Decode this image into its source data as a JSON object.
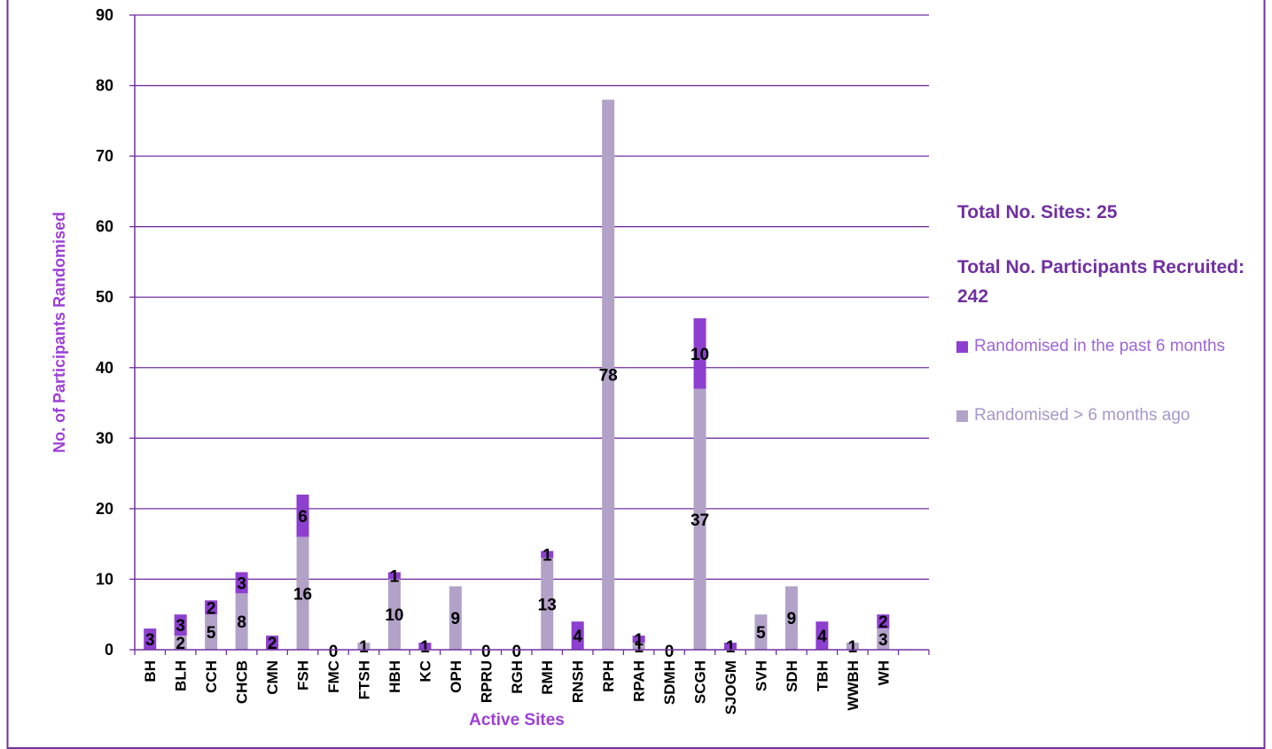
{
  "chart_data": {
    "type": "bar",
    "stacked": true,
    "xlabel": "Active Sites",
    "ylabel": "No. of Participants Randomised",
    "ylim": [
      0,
      90
    ],
    "yticks": [
      0,
      10,
      20,
      30,
      40,
      50,
      60,
      70,
      80,
      90
    ],
    "grid": true,
    "legend_position": "right",
    "categories": [
      "BH",
      "BLH",
      "CCH",
      "CHCB",
      "CMN",
      "FSH",
      "FMC",
      "FTSH",
      "HBH",
      "KC",
      "OPH",
      "RPRU",
      "RGH",
      "RMH",
      "RNSH",
      "RPH",
      "RPAH",
      "SDMH",
      "SCGH",
      "SJOGM",
      "SVH",
      "SDH",
      "TBH",
      "WWBH",
      "WH"
    ],
    "series": [
      {
        "name": "Randomised > 6 months ago",
        "color": "#b3a2c7",
        "values": [
          0,
          2,
          5,
          8,
          0,
          16,
          0,
          1,
          10,
          0,
          9,
          0,
          0,
          13,
          0,
          78,
          1,
          0,
          37,
          0,
          5,
          9,
          0,
          1,
          3
        ],
        "labels": [
          "",
          "2",
          "5",
          "8",
          "",
          "16",
          "0",
          "1",
          "10",
          "",
          "9",
          "",
          "0",
          "13",
          "",
          "78",
          "1",
          "0",
          "37",
          "",
          "5",
          "9",
          "",
          "1",
          "3"
        ]
      },
      {
        "name": "Randomised in the past 6 months",
        "color": "#8d3fcf",
        "values": [
          3,
          3,
          2,
          3,
          2,
          6,
          0,
          0,
          1,
          1,
          0,
          0,
          0,
          1,
          4,
          0,
          1,
          0,
          10,
          1,
          0,
          0,
          4,
          0,
          2
        ],
        "labels": [
          "3",
          "3",
          "2",
          "3",
          "2",
          "6",
          "",
          "",
          "1",
          "1",
          "",
          "0",
          "",
          "1",
          "4",
          "",
          "1",
          "",
          "10",
          "1",
          "",
          "",
          "4",
          "",
          "2"
        ]
      }
    ]
  },
  "side": {
    "total_sites": "Total No. Sites: 25",
    "total_participants": "Total No. Participants Recruited: 242"
  },
  "legend": {
    "recent": "Randomised in the past 6 months",
    "older": "Randomised > 6 months ago"
  },
  "colors": {
    "frame": "#7030a0",
    "grid": "#7030a0",
    "axis_title": "#9d3fd6"
  }
}
